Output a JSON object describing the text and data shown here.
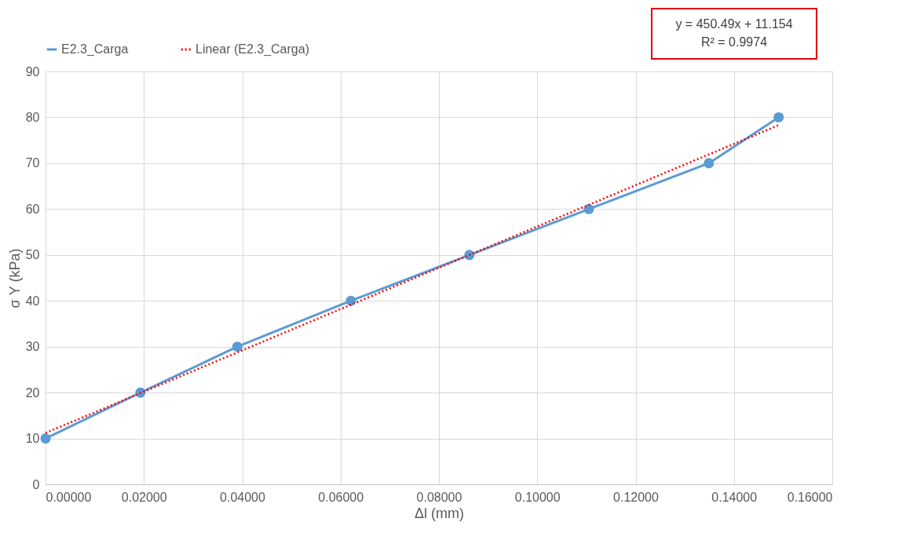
{
  "chart_data": {
    "type": "line",
    "xlabel": "Δl (mm)",
    "ylabel": "σ Y (kPa)",
    "xlim": [
      0,
      0.16
    ],
    "ylim": [
      0,
      90
    ],
    "xticks": [
      {
        "value": 0,
        "label": "0.00000"
      },
      {
        "value": 0.02,
        "label": "0.02000"
      },
      {
        "value": 0.04,
        "label": "0.04000"
      },
      {
        "value": 0.06,
        "label": "0.06000"
      },
      {
        "value": 0.08,
        "label": "0.08000"
      },
      {
        "value": 0.1,
        "label": "0.10000"
      },
      {
        "value": 0.12,
        "label": "0.12000"
      },
      {
        "value": 0.14,
        "label": "0.14000"
      },
      {
        "value": 0.16,
        "label": "0.16000"
      }
    ],
    "yticks": [
      0,
      10,
      20,
      30,
      40,
      50,
      60,
      70,
      80,
      90
    ],
    "grid": true,
    "legend": "top",
    "series": [
      {
        "name": "E2.3_Carga",
        "color": "#5b9bd5",
        "marker": "circle",
        "line_style": "solid",
        "x": [
          0,
          0.0193,
          0.039,
          0.0621,
          0.0862,
          0.1105,
          0.1349,
          0.1491
        ],
        "values": [
          10,
          20,
          30,
          40,
          50,
          60,
          70,
          80
        ]
      },
      {
        "name": "Linear (E2.3_Carga)",
        "type": "line",
        "color": "#ff0000",
        "marker": "none",
        "line_style": "dotted",
        "x": [
          0,
          0.1491
        ],
        "values": [
          11.2,
          78.3
        ]
      }
    ],
    "annotations": [
      "y = 450.49x + 11.154",
      "R² = 0.9974"
    ]
  }
}
